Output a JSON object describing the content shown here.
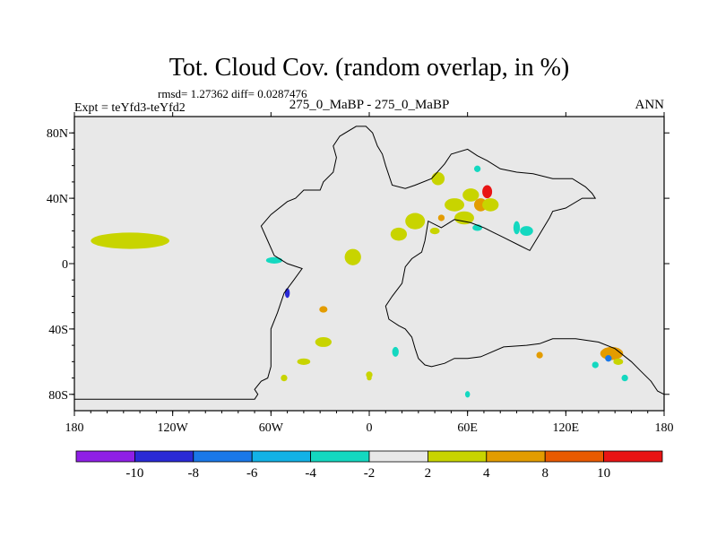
{
  "chart_data": {
    "type": "heatmap",
    "title": "Tot. Cloud Cov. (random overlap, in %)",
    "stats_line": "rmsd= 1.27362 diff= 0.0287476",
    "expt_label": "Expt = teYfd3-teYfd2",
    "subtitle": "275_0_MaBP - 275_0_MaBP",
    "season": "ANN",
    "x_range": [
      -180,
      180
    ],
    "y_range": [
      -90,
      90
    ],
    "x_ticks": [
      {
        "value": -180,
        "label": "180"
      },
      {
        "value": -120,
        "label": "120W"
      },
      {
        "value": -60,
        "label": "60W"
      },
      {
        "value": 0,
        "label": "0"
      },
      {
        "value": 60,
        "label": "60E"
      },
      {
        "value": 120,
        "label": "120E"
      },
      {
        "value": 180,
        "label": "180"
      }
    ],
    "y_ticks": [
      {
        "value": 80,
        "label": "80N"
      },
      {
        "value": 40,
        "label": "40N"
      },
      {
        "value": 0,
        "label": "0"
      },
      {
        "value": -40,
        "label": "40S"
      },
      {
        "value": -80,
        "label": "80S"
      }
    ],
    "colorbar": {
      "levels": [
        -10,
        -8,
        -6,
        -4,
        -2,
        2,
        4,
        8,
        10
      ],
      "level_labels": [
        "-10",
        "-8",
        "-6",
        "-4",
        "-2",
        "2",
        "4",
        "8",
        "10"
      ],
      "colors": [
        "#8f1fe6",
        "#2a2ad6",
        "#1a78e8",
        "#12b2e6",
        "#14d8c0",
        "#e8e8e8",
        "#c8d400",
        "#e39c00",
        "#e85a00",
        "#e81414"
      ]
    },
    "background_color": "#e8e8e8",
    "coastline": [
      [
        [
          -180,
          -83
        ],
        [
          -70,
          -83
        ],
        [
          -68,
          -80
        ],
        [
          -70,
          -77
        ],
        [
          -66,
          -72
        ],
        [
          -62,
          -70
        ],
        [
          -60,
          -63
        ],
        [
          -60,
          -40
        ],
        [
          -56,
          -30
        ],
        [
          -52,
          -18
        ],
        [
          -46,
          -10
        ],
        [
          -41,
          -3
        ],
        [
          -50,
          0
        ],
        [
          -58,
          5
        ],
        [
          -62,
          14
        ],
        [
          -66,
          23
        ],
        [
          -60,
          30
        ],
        [
          -50,
          38
        ],
        [
          -45,
          40
        ],
        [
          -40,
          45
        ],
        [
          -30,
          45
        ],
        [
          -28,
          50
        ],
        [
          -22,
          56
        ],
        [
          -20,
          65
        ],
        [
          -22,
          72
        ],
        [
          -18,
          78
        ],
        [
          -8,
          84
        ],
        [
          -2,
          84
        ],
        [
          2,
          80
        ],
        [
          5,
          72
        ],
        [
          8,
          67
        ],
        [
          10,
          60
        ],
        [
          14,
          48
        ],
        [
          22,
          46
        ],
        [
          28,
          48
        ],
        [
          38,
          52
        ],
        [
          46,
          61
        ],
        [
          50,
          67
        ],
        [
          60,
          70
        ],
        [
          66,
          66
        ],
        [
          72,
          63
        ],
        [
          80,
          58
        ],
        [
          90,
          56
        ],
        [
          100,
          55
        ],
        [
          112,
          52
        ],
        [
          124,
          52
        ],
        [
          132,
          47
        ],
        [
          136,
          43
        ],
        [
          138,
          40
        ],
        [
          136,
          40
        ],
        [
          130,
          40
        ],
        [
          120,
          34
        ],
        [
          112,
          32
        ],
        [
          110,
          28
        ],
        [
          104,
          18
        ],
        [
          98,
          8
        ],
        [
          92,
          11
        ],
        [
          82,
          16
        ],
        [
          76,
          19
        ],
        [
          70,
          22
        ],
        [
          62,
          25
        ],
        [
          52,
          27
        ],
        [
          44,
          22
        ],
        [
          36,
          26
        ],
        [
          34,
          14
        ],
        [
          32,
          7
        ],
        [
          26,
          3
        ],
        [
          22,
          -2
        ],
        [
          20,
          -12
        ],
        [
          14,
          -20
        ],
        [
          10,
          -26
        ],
        [
          12,
          -34
        ],
        [
          18,
          -38
        ],
        [
          22,
          -40
        ],
        [
          26,
          -45
        ],
        [
          28,
          -52
        ],
        [
          30,
          -58
        ],
        [
          34,
          -62
        ],
        [
          38,
          -63
        ],
        [
          46,
          -61
        ],
        [
          52,
          -58
        ],
        [
          60,
          -58
        ],
        [
          68,
          -57
        ],
        [
          82,
          -51
        ],
        [
          96,
          -50
        ],
        [
          104,
          -49
        ],
        [
          112,
          -46
        ],
        [
          126,
          -46
        ],
        [
          140,
          -48
        ],
        [
          150,
          -52
        ],
        [
          160,
          -60
        ],
        [
          166,
          -66
        ],
        [
          172,
          -72
        ],
        [
          176,
          -78
        ],
        [
          180,
          -80
        ]
      ]
    ],
    "colored_patches": [
      {
        "lon": -146,
        "lat": 14,
        "rx": 24,
        "ry": 5,
        "level": 2
      },
      {
        "lon": -58,
        "lat": 2,
        "rx": 5,
        "ry": 2,
        "level": -3
      },
      {
        "lon": -50,
        "lat": -18,
        "rx": 1.5,
        "ry": 3,
        "level": -9
      },
      {
        "lon": -28,
        "lat": -28,
        "rx": 2.5,
        "ry": 2,
        "level": 6
      },
      {
        "lon": -10,
        "lat": 4,
        "rx": 5,
        "ry": 5,
        "level": 2
      },
      {
        "lon": 18,
        "lat": 18,
        "rx": 5,
        "ry": 4,
        "level": 2
      },
      {
        "lon": 28,
        "lat": 26,
        "rx": 6,
        "ry": 5,
        "level": 2
      },
      {
        "lon": 40,
        "lat": 20,
        "rx": 3,
        "ry": 2,
        "level": 3
      },
      {
        "lon": 42,
        "lat": 52,
        "rx": 4,
        "ry": 4,
        "level": 3
      },
      {
        "lon": 44,
        "lat": 28,
        "rx": 2,
        "ry": 2,
        "level": 5
      },
      {
        "lon": 52,
        "lat": 36,
        "rx": 6,
        "ry": 4,
        "level": 3
      },
      {
        "lon": 58,
        "lat": 28,
        "rx": 6,
        "ry": 4,
        "level": 3
      },
      {
        "lon": 62,
        "lat": 42,
        "rx": 5,
        "ry": 4,
        "level": 3
      },
      {
        "lon": 68,
        "lat": 36,
        "rx": 4,
        "ry": 4,
        "level": 5
      },
      {
        "lon": 72,
        "lat": 44,
        "rx": 3,
        "ry": 4,
        "level": 10
      },
      {
        "lon": 74,
        "lat": 36,
        "rx": 5,
        "ry": 4,
        "level": 2
      },
      {
        "lon": 66,
        "lat": 58,
        "rx": 2,
        "ry": 2,
        "level": -3
      },
      {
        "lon": 90,
        "lat": 22,
        "rx": 2,
        "ry": 4,
        "level": -3
      },
      {
        "lon": 96,
        "lat": 20,
        "rx": 4,
        "ry": 3,
        "level": -3
      },
      {
        "lon": 66,
        "lat": 22,
        "rx": 3,
        "ry": 2,
        "level": -3
      },
      {
        "lon": -28,
        "lat": -48,
        "rx": 5,
        "ry": 3,
        "level": 2
      },
      {
        "lon": -40,
        "lat": -60,
        "rx": 4,
        "ry": 2,
        "level": 2
      },
      {
        "lon": 0,
        "lat": -68,
        "rx": 2,
        "ry": 2,
        "level": 3
      },
      {
        "lon": 16,
        "lat": -54,
        "rx": 2,
        "ry": 3,
        "level": -3
      },
      {
        "lon": 104,
        "lat": -56,
        "rx": 2,
        "ry": 2,
        "level": 6
      },
      {
        "lon": 148,
        "lat": -55,
        "rx": 7,
        "ry": 4,
        "level": 6
      },
      {
        "lon": 146,
        "lat": -58,
        "rx": 2,
        "ry": 2,
        "level": -8
      },
      {
        "lon": 152,
        "lat": -60,
        "rx": 3,
        "ry": 2,
        "level": 2
      },
      {
        "lon": 138,
        "lat": -62,
        "rx": 2,
        "ry": 2,
        "level": -3
      },
      {
        "lon": 156,
        "lat": -70,
        "rx": 2,
        "ry": 2,
        "level": -3
      },
      {
        "lon": 60,
        "lat": -80,
        "rx": 1.5,
        "ry": 2,
        "level": -3
      },
      {
        "lon": -52,
        "lat": -70,
        "rx": 2,
        "ry": 2,
        "level": 2
      },
      {
        "lon": 0,
        "lat": -70,
        "rx": 1.5,
        "ry": 1.5,
        "level": 2
      }
    ]
  }
}
